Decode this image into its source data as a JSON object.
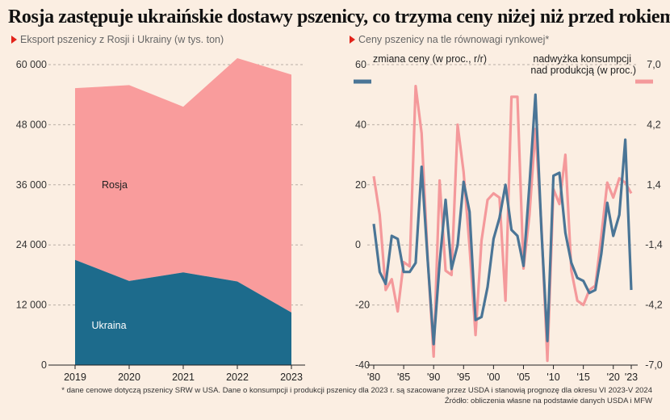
{
  "title": "Rosja zastępuje ukraińskie dostawy pszenicy, co trzyma ceny niżej niż przed rokiem",
  "left_subtitle": "Eksport pszenicy z Rosji i Ukrainy (w tys. ton)",
  "right_subtitle": "Ceny pszenicy na tle równowagi rynkowej*",
  "footnote": "* dane cenowe dotyczą pszenicy SRW w USA. Dane o konsumpcji i produkcji pszenicy dla 2023 r. są szacowane przez USDA i stanowią prognozę dla okresu VI 2023-V 2024",
  "source": "Źródło: obliczenia własne na podstawie danych USDA i MFW",
  "colors": {
    "background": "#fbeee2",
    "rosja": "#f99c9c",
    "ukraina": "#1d6b8c",
    "price_line": "#4a7596",
    "surplus_line": "#f4999b",
    "accent": "#e2231a"
  },
  "chart_data": [
    {
      "type": "area",
      "stacked": true,
      "x": [
        "2019",
        "2020",
        "2021",
        "2022",
        "2023"
      ],
      "ylim": [
        0,
        60000
      ],
      "yticks": [
        "0",
        "12 000",
        "24 000",
        "36 000",
        "48 000",
        "60 000"
      ],
      "grid": true,
      "series": [
        {
          "name": "Ukraina",
          "values": [
            21000,
            16800,
            18500,
            16700,
            10500
          ]
        },
        {
          "name": "Rosja",
          "values": [
            34300,
            39100,
            33100,
            44600,
            47500
          ]
        }
      ]
    },
    {
      "type": "line",
      "x": [
        1980,
        1981,
        1982,
        1983,
        1984,
        1985,
        1986,
        1987,
        1988,
        1989,
        1990,
        1991,
        1992,
        1993,
        1994,
        1995,
        1996,
        1997,
        1998,
        1999,
        2000,
        2001,
        2002,
        2003,
        2004,
        2005,
        2006,
        2007,
        2008,
        2009,
        2010,
        2011,
        2012,
        2013,
        2014,
        2015,
        2016,
        2017,
        2018,
        2019,
        2020,
        2021,
        2022,
        2023
      ],
      "xticklabels": [
        "'80",
        "'85",
        "'90",
        "'95",
        "'00",
        "'05",
        "'10",
        "'15",
        "'20",
        "'23"
      ],
      "xtick_years": [
        1980,
        1985,
        1990,
        1995,
        2000,
        2005,
        2010,
        2015,
        2020,
        2023
      ],
      "grid": true,
      "series": [
        {
          "name": "zmiana ceny (w proc., r/r)",
          "axis": "left",
          "ylim": [
            -40,
            60
          ],
          "yticks": [
            "-40",
            "-20",
            "0",
            "20",
            "40",
            "60"
          ],
          "values": [
            7,
            -9,
            -13,
            3,
            2,
            -9,
            -9,
            -6,
            26,
            -5,
            -33,
            -6,
            15,
            -8,
            0,
            21,
            11,
            -25,
            -24,
            -14,
            2,
            9,
            20,
            5,
            3,
            -7,
            20,
            50,
            5,
            -32,
            23,
            24,
            4,
            -6,
            -11,
            -12,
            -16,
            -15,
            -3,
            14,
            3,
            10,
            35,
            -15
          ]
        },
        {
          "name": "nadwyżka konsumpcji nad produkcją (w proc.)",
          "axis": "right",
          "ylim": [
            -7.0,
            7.0
          ],
          "yticks": [
            "-7,0",
            "-4,2",
            "-1,4",
            "1,4",
            "4,2",
            "7,0"
          ],
          "values": [
            1.8,
            0.0,
            -3.5,
            -3.0,
            -4.5,
            -2.2,
            -2.4,
            6.0,
            3.8,
            -2.0,
            -6.6,
            1.6,
            -2.6,
            -2.8,
            4.2,
            2.0,
            -1.5,
            -5.6,
            -1.2,
            0.7,
            1.0,
            0.8,
            -4.0,
            5.5,
            5.5,
            -2.5,
            0.0,
            4.0,
            -0.5,
            -6.8,
            1.2,
            0.5,
            2.8,
            -2.6,
            -4.0,
            -4.2,
            -3.5,
            -3.3,
            -1.0,
            1.5,
            0.8,
            1.7,
            1.5,
            1.0
          ]
        }
      ]
    }
  ]
}
